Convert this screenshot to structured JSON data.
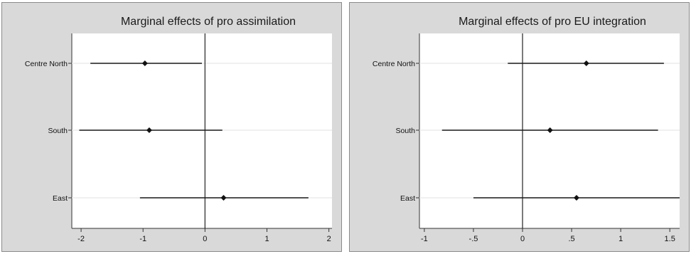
{
  "chart_data": [
    {
      "type": "scatter",
      "title": "Marginal effects of pro assimilation",
      "categories": [
        "Centre North",
        "South",
        "East"
      ],
      "estimates": [
        -0.97,
        -0.9,
        0.3
      ],
      "ci_low": [
        -1.85,
        -2.03,
        -1.05
      ],
      "ci_high": [
        -0.05,
        0.28,
        1.67
      ],
      "xlim": [
        -2.15,
        2.05
      ],
      "xticks": [
        -2,
        -1,
        0,
        1,
        2
      ],
      "xtick_labels": [
        "-2",
        "-1",
        "0",
        "1",
        "2"
      ],
      "reference_line": 0,
      "grid": true
    },
    {
      "type": "scatter",
      "title": "Marginal effects of pro EU integration",
      "categories": [
        "Centre North",
        "South",
        "East"
      ],
      "estimates": [
        0.65,
        0.28,
        0.55
      ],
      "ci_low": [
        -0.15,
        -0.82,
        -0.5
      ],
      "ci_high": [
        1.44,
        1.38,
        1.6
      ],
      "xlim": [
        -1.05,
        1.6
      ],
      "xticks": [
        -1,
        -0.5,
        0,
        0.5,
        1,
        1.5
      ],
      "xtick_labels": [
        "-1",
        "-.5",
        "0",
        ".5",
        "1",
        "1.5"
      ],
      "reference_line": 0,
      "grid": true
    }
  ]
}
